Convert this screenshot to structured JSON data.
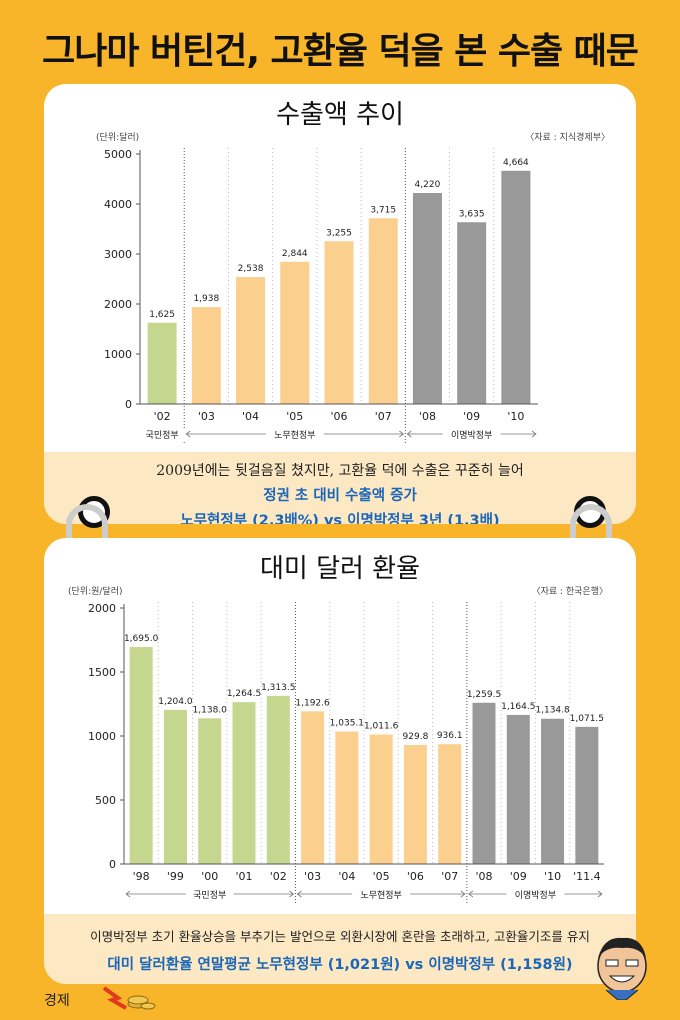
{
  "title": "그나마 버틴건, 고환율 덕을 본 수출 때문",
  "chart1": {
    "title": "수출액 추이",
    "unit": "(단위:달러)",
    "source": "〈자료 : 지식경제부〉",
    "footnote": "2009년에는 뒷걸음질 쳤지만, 고환율 덕에 수출은 꾸준히 늘어",
    "highlight1": "정권 초 대비 수출액 증가",
    "highlight2": "노무현정부 (2.3배%) vs 이명박정부 3년 (1.3배)"
  },
  "chart2": {
    "title": "대미 달러 환율",
    "unit": "(단위:원/달러)",
    "source": "〈자료 : 한국은행〉",
    "footnote": "이명박정부 초기 환율상승을 부추기는 발언으로 외환시장에 혼란을 초래하고, 고환율기조를 유지",
    "highlight": "대미 달러환율 연말평균 노무현정부 (1,021원) vs 이명박정부 (1,158원)"
  },
  "chart_data": [
    {
      "type": "bar",
      "title": "수출액 추이",
      "ylabel": "(단위:달러)",
      "ylim": [
        0,
        5000
      ],
      "yticks": [
        0,
        1000,
        2000,
        3000,
        4000,
        5000
      ],
      "categories": [
        "'02",
        "'03",
        "'04",
        "'05",
        "'06",
        "'07",
        "'08",
        "'09",
        "'10"
      ],
      "values": [
        1625,
        1938,
        2538,
        2844,
        3255,
        3715,
        4220,
        3635,
        4664
      ],
      "value_labels": [
        "1,625",
        "1,938",
        "2,538",
        "2,844",
        "3,255",
        "3,715",
        "4,220",
        "3,635",
        "4,664"
      ],
      "groups": [
        {
          "name": "국민정부",
          "start": 0,
          "end": 0,
          "color": "#c5d68f"
        },
        {
          "name": "노무현정부",
          "start": 1,
          "end": 5,
          "color": "#fbd08e"
        },
        {
          "name": "이명박정부",
          "start": 6,
          "end": 8,
          "color": "#999999"
        }
      ],
      "grid": false
    },
    {
      "type": "bar",
      "title": "대미 달러 환율",
      "ylabel": "(단위:원/달러)",
      "ylim": [
        0,
        2000
      ],
      "yticks": [
        0,
        500,
        1000,
        1500,
        2000
      ],
      "categories": [
        "'98",
        "'99",
        "'00",
        "'01",
        "'02",
        "'03",
        "'04",
        "'05",
        "'06",
        "'07",
        "'08",
        "'09",
        "'10",
        "'11.4"
      ],
      "values": [
        1695.0,
        1204.0,
        1138.0,
        1264.5,
        1313.5,
        1192.6,
        1035.1,
        1011.6,
        929.8,
        936.1,
        1259.5,
        1164.5,
        1134.8,
        1071.5
      ],
      "value_labels": [
        "1,695.0",
        "1,204.0",
        "1,138.0",
        "1,264.5",
        "1,313.5",
        "1,192.6",
        "1,035.1",
        "1,011.6",
        "929.8",
        "936.1",
        "1,259.5",
        "1,164.5",
        "1,134.8",
        "1,071.5"
      ],
      "groups": [
        {
          "name": "국민정부",
          "start": 0,
          "end": 4,
          "color": "#c5d68f"
        },
        {
          "name": "노무현정부",
          "start": 5,
          "end": 9,
          "color": "#fbd08e"
        },
        {
          "name": "이명박정부",
          "start": 10,
          "end": 13,
          "color": "#999999"
        }
      ],
      "grid": false
    }
  ],
  "footer": {
    "section": "경제"
  },
  "icons": {
    "money": "coins-arrow-icon",
    "mascot": "mascot-face-icon"
  }
}
